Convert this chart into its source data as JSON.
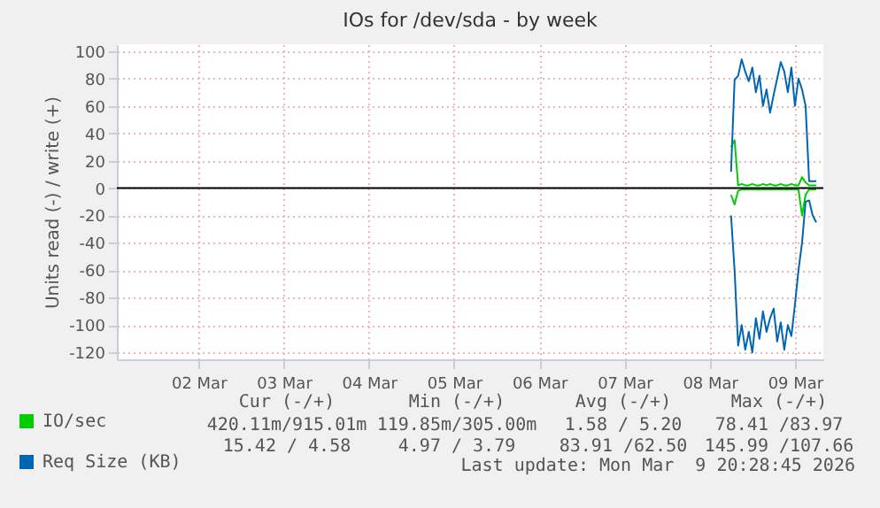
{
  "chart_data": {
    "type": "line",
    "title": "IOs for /dev/sda - by week",
    "ylabel": "Units read (-) / write (+)",
    "x": [
      "2026-03-08T18:00",
      "2026-03-08T19:00",
      "2026-03-08T20:00",
      "2026-03-08T21:00",
      "2026-03-08T22:00",
      "2026-03-08T23:00",
      "2026-03-09T00:00",
      "2026-03-09T01:00",
      "2026-03-09T02:00",
      "2026-03-09T03:00",
      "2026-03-09T04:00",
      "2026-03-09T05:00",
      "2026-03-09T06:00",
      "2026-03-09T07:00",
      "2026-03-09T08:00",
      "2026-03-09T09:00",
      "2026-03-09T10:00",
      "2026-03-09T11:00",
      "2026-03-09T12:00",
      "2026-03-09T13:00",
      "2026-03-09T14:00",
      "2026-03-09T15:00",
      "2026-03-09T16:00",
      "2026-03-09T17:00",
      "2026-03-09T18:00"
    ],
    "series": [
      {
        "color": "#00cc00",
        "values": [
          -5,
          -12,
          -2,
          -1,
          -1,
          -1,
          -1,
          -1,
          -1,
          -1,
          -1,
          -1,
          -1,
          -1,
          -1,
          -1,
          -1,
          -1,
          -1,
          -1,
          -20,
          -5,
          -1,
          -1,
          -1
        ]
      },
      {
        "name": "IO/sec",
        "color": "#00cc00",
        "values": [
          30,
          35,
          2,
          3,
          2,
          2,
          3,
          2,
          2,
          3,
          2,
          3,
          2,
          2,
          3,
          2,
          2,
          3,
          2,
          2,
          8,
          4,
          2,
          2,
          2
        ]
      },
      {
        "color": "#0066b3",
        "values": [
          -20,
          -60,
          -115,
          -100,
          -118,
          -105,
          -120,
          -95,
          -110,
          -90,
          -105,
          -95,
          -88,
          -112,
          -98,
          -118,
          -100,
          -108,
          -85,
          -60,
          -40,
          -10,
          -9,
          -20,
          -25
        ]
      },
      {
        "name": "Req Size (KB)",
        "color": "#0066b3",
        "values": [
          12,
          79,
          82,
          94,
          85,
          78,
          88,
          70,
          82,
          60,
          72,
          55,
          68,
          80,
          92,
          85,
          70,
          88,
          60,
          80,
          72,
          60,
          5,
          5,
          5
        ]
      }
    ],
    "xlim": [
      "2026-03-01T13:00",
      "2026-03-09T20:00"
    ],
    "xticks": [
      {
        "value": "2026-03-02T12:00",
        "label": "02 Mar"
      },
      {
        "value": "2026-03-03T12:00",
        "label": "03 Mar"
      },
      {
        "value": "2026-03-04T12:00",
        "label": "04 Mar"
      },
      {
        "value": "2026-03-05T12:00",
        "label": "05 Mar"
      },
      {
        "value": "2026-03-06T12:00",
        "label": "06 Mar"
      },
      {
        "value": "2026-03-07T12:00",
        "label": "07 Mar"
      },
      {
        "value": "2026-03-08T12:00",
        "label": "08 Mar"
      },
      {
        "value": "2026-03-09T12:00",
        "label": "09 Mar"
      }
    ],
    "ylim": [
      -125,
      105
    ],
    "yticks": [
      -120,
      -100,
      -80,
      -60,
      -40,
      -20,
      0,
      20,
      40,
      60,
      80,
      100
    ],
    "grid": true,
    "legend": "bottom",
    "ref_lines": [
      {
        "axis": "y",
        "value": 0,
        "color": "#000000"
      }
    ],
    "annotations": [
      "Cur (-/+)",
      "Min (-/+)",
      "Avg (-/+)",
      "Max (-/+)",
      "420.11m/915.01m",
      "119.85m/305.00m",
      "1.58 / 5.20",
      "78.41 /83.97",
      "15.42 / 4.58",
      "4.97 / 3.79",
      "83.91 /62.50",
      "145.99 /107.66",
      "Last update: Mon Mar  9 20:28:45 2026"
    ]
  }
}
